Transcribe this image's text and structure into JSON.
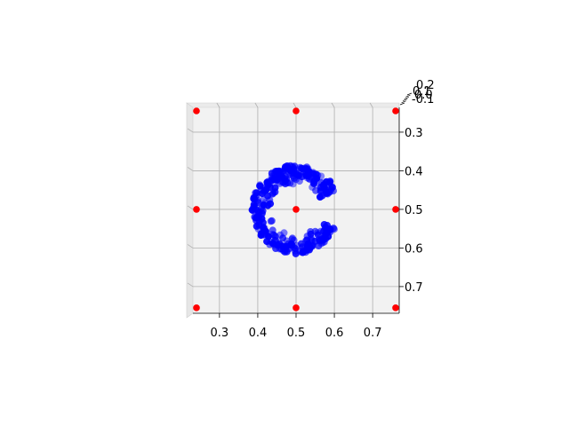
{
  "chart_data": {
    "type": "scatter",
    "projection": "3d",
    "view": "top-down",
    "grid": true,
    "title": "",
    "xlabel": "",
    "ylabel": "",
    "zlabel": "",
    "xlim": [
      0.24,
      0.76
    ],
    "ylim": [
      0.245,
      0.76
    ],
    "y_inverted": true,
    "x_ticks": [
      "0.3",
      "0.4",
      "0.5",
      "0.6",
      "0.7"
    ],
    "y_ticks": [
      "0.3",
      "0.4",
      "0.5",
      "0.6",
      "0.7"
    ],
    "z_ticks": [
      "0.2",
      "0.1",
      "0.0",
      "-0.1"
    ],
    "series": [
      {
        "color": "#0000ff",
        "shape": "letter C (ring open to the right)",
        "center": [
          0.5,
          0.5
        ],
        "radius_outer": 0.115,
        "radius_inner": 0.065,
        "opening_angle_deg": [
          -25,
          25
        ],
        "n_points": 300
      },
      {
        "color": "#ff0000",
        "points": [
          [
            0.24,
            0.245
          ],
          [
            0.5,
            0.245
          ],
          [
            0.76,
            0.245
          ],
          [
            0.24,
            0.5
          ],
          [
            0.5,
            0.5
          ],
          [
            0.76,
            0.5
          ],
          [
            0.24,
            0.755
          ],
          [
            0.5,
            0.755
          ],
          [
            0.76,
            0.755
          ]
        ]
      }
    ]
  }
}
